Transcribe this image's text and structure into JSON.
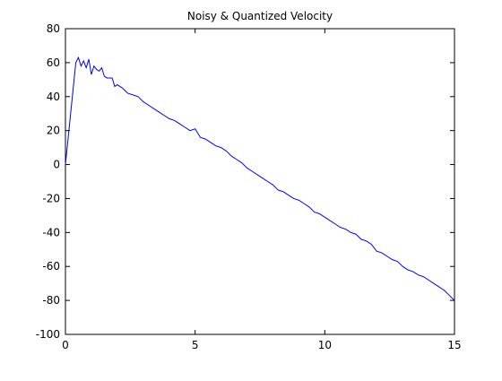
{
  "chart_data": {
    "type": "line",
    "title": "Noisy & Quantized Velocity",
    "xlabel": "",
    "ylabel": "",
    "xlim": [
      0,
      15
    ],
    "ylim": [
      -100,
      80
    ],
    "x_ticks": [
      0,
      5,
      10,
      15
    ],
    "y_ticks": [
      80,
      60,
      40,
      20,
      0,
      -20,
      -40,
      -60,
      -80,
      -100
    ],
    "grid": false,
    "series": [
      {
        "color": "#0000ff",
        "x": [
          0,
          0.1,
          0.2,
          0.3,
          0.4,
          0.5,
          0.6,
          0.7,
          0.8,
          0.9,
          1.0,
          1.1,
          1.2,
          1.3,
          1.4,
          1.5,
          1.6,
          1.7,
          1.8,
          1.9,
          2.0,
          2.2,
          2.4,
          2.6,
          2.8,
          3.0,
          3.2,
          3.4,
          3.6,
          3.8,
          4.0,
          4.2,
          4.4,
          4.6,
          4.8,
          5.0,
          5.2,
          5.4,
          5.6,
          5.8,
          6.0,
          6.2,
          6.4,
          6.6,
          6.8,
          7.0,
          7.2,
          7.4,
          7.6,
          7.8,
          8.0,
          8.2,
          8.4,
          8.6,
          8.8,
          9.0,
          9.2,
          9.4,
          9.6,
          9.8,
          10.0,
          10.2,
          10.4,
          10.6,
          10.8,
          11.0,
          11.2,
          11.4,
          11.6,
          11.8,
          12.0,
          12.2,
          12.4,
          12.6,
          12.8,
          13.0,
          13.2,
          13.4,
          13.6,
          13.8,
          14.0,
          14.2,
          14.4,
          14.6,
          14.8,
          15.0
        ],
        "y": [
          0,
          15,
          30,
          45,
          60,
          63,
          58,
          61,
          57,
          62,
          53,
          58,
          56,
          55,
          57,
          52,
          51,
          51,
          51,
          46,
          47,
          45,
          42,
          41,
          40,
          37,
          35,
          33,
          31,
          29,
          27,
          26,
          24,
          22,
          20,
          21,
          16,
          15,
          13,
          11,
          10,
          8,
          5,
          3,
          1,
          -2,
          -4,
          -6,
          -8,
          -10,
          -12,
          -15,
          -16,
          -18,
          -20,
          -21,
          -23,
          -25,
          -28,
          -29,
          -31,
          -33,
          -35,
          -37,
          -38,
          -40,
          -41,
          -44,
          -45,
          -47,
          -51,
          -52,
          -54,
          -56,
          -57,
          -60,
          -62,
          -63,
          -65,
          -66,
          -68,
          -70,
          -72,
          -74,
          -77,
          -80
        ]
      }
    ]
  }
}
